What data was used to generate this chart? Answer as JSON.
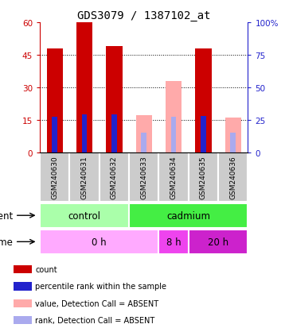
{
  "title": "GDS3079 / 1387102_at",
  "samples": [
    "GSM240630",
    "GSM240631",
    "GSM240632",
    "GSM240633",
    "GSM240634",
    "GSM240635",
    "GSM240636"
  ],
  "count_values": [
    48,
    60,
    49,
    null,
    null,
    48,
    null
  ],
  "rank_values": [
    27,
    29,
    29,
    null,
    null,
    28,
    null
  ],
  "count_absent": [
    null,
    null,
    null,
    17,
    33,
    null,
    16
  ],
  "rank_absent": [
    null,
    null,
    null,
    15,
    27,
    null,
    15
  ],
  "ylim_left": [
    0,
    60
  ],
  "ylim_right": [
    0,
    100
  ],
  "yticks_left": [
    0,
    15,
    30,
    45,
    60
  ],
  "yticks_right": [
    0,
    25,
    50,
    75,
    100
  ],
  "ytick_labels_left": [
    "0",
    "15",
    "30",
    "45",
    "60"
  ],
  "ytick_labels_right": [
    "0",
    "25",
    "50",
    "75",
    "100%"
  ],
  "count_color": "#cc0000",
  "rank_color": "#2222cc",
  "count_absent_color": "#ffaaaa",
  "rank_absent_color": "#aaaaee",
  "agent_control_color": "#aaffaa",
  "agent_cadmium_color": "#44ee44",
  "time_0h_color": "#ffaaff",
  "time_8h_color": "#ee44ee",
  "time_20h_color": "#cc22cc",
  "agent_labels": [
    "control",
    "cadmium"
  ],
  "time_labels": [
    "0 h",
    "8 h",
    "20 h"
  ],
  "legend_items": [
    {
      "label": "count",
      "color": "#cc0000"
    },
    {
      "label": "percentile rank within the sample",
      "color": "#2222cc"
    },
    {
      "label": "value, Detection Call = ABSENT",
      "color": "#ffaaaa"
    },
    {
      "label": "rank, Detection Call = ABSENT",
      "color": "#aaaaee"
    }
  ],
  "left_axis_color": "#cc0000",
  "right_axis_color": "#2222cc"
}
